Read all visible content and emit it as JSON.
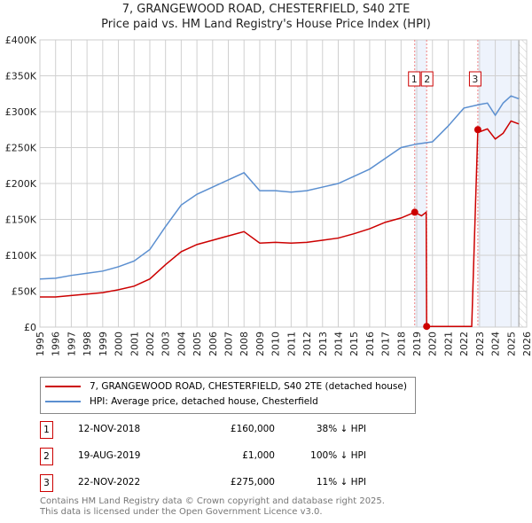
{
  "chart_data": {
    "type": "line",
    "title": "7, GRANGEWOOD ROAD, CHESTERFIELD, S40 2TE",
    "subtitle": "Price paid vs. HM Land Registry's House Price Index (HPI)",
    "xlim": [
      1995,
      2026
    ],
    "ylim": [
      0,
      400000
    ],
    "xticks": [
      "1995",
      "1996",
      "1997",
      "1998",
      "1999",
      "2000",
      "2001",
      "2002",
      "2003",
      "2004",
      "2005",
      "2006",
      "2007",
      "2008",
      "2009",
      "2010",
      "2011",
      "2012",
      "2013",
      "2014",
      "2015",
      "2016",
      "2017",
      "2018",
      "2019",
      "2020",
      "2021",
      "2022",
      "2023",
      "2024",
      "2025",
      "2026"
    ],
    "yticks": [
      {
        "v": 0,
        "l": "£0"
      },
      {
        "v": 50000,
        "l": "£50K"
      },
      {
        "v": 100000,
        "l": "£100K"
      },
      {
        "v": 150000,
        "l": "£150K"
      },
      {
        "v": 200000,
        "l": "£200K"
      },
      {
        "v": 250000,
        "l": "£250K"
      },
      {
        "v": 300000,
        "l": "£300K"
      },
      {
        "v": 350000,
        "l": "£350K"
      },
      {
        "v": 400000,
        "l": "£400K"
      }
    ],
    "grid": true,
    "series": [
      {
        "name": "7, GRANGEWOOD ROAD, CHESTERFIELD, S40 2TE (detached house)",
        "color": "#cc0000",
        "x": [
          1995,
          1996,
          1997,
          1998,
          1999,
          2000,
          2001,
          2002,
          2003,
          2004,
          2005,
          2006,
          2007,
          2008,
          2009,
          2010,
          2011,
          2012,
          2013,
          2014,
          2015,
          2016,
          2017,
          2018,
          2018.87,
          2019.3,
          2019.6,
          2019.63,
          2022.5,
          2022.89,
          2023,
          2023.5,
          2024,
          2024.5,
          2025,
          2025.5
        ],
        "y": [
          42000,
          42000,
          44000,
          46000,
          48000,
          52000,
          57000,
          67000,
          87000,
          105000,
          115000,
          121000,
          127000,
          133000,
          117000,
          118000,
          117000,
          118000,
          121000,
          124000,
          130000,
          137000,
          146000,
          152000,
          160000,
          155000,
          160000,
          1000,
          1000,
          275000,
          272000,
          276000,
          262000,
          270000,
          287000,
          283000
        ]
      },
      {
        "name": "HPI: Average price, detached house, Chesterfield",
        "color": "#5b8fd0",
        "x": [
          1995,
          1996,
          1997,
          1998,
          1999,
          2000,
          2001,
          2002,
          2003,
          2004,
          2005,
          2006,
          2007,
          2008,
          2009,
          2010,
          2011,
          2012,
          2013,
          2014,
          2015,
          2016,
          2017,
          2018,
          2019,
          2020,
          2021,
          2022,
          2023,
          2023.5,
          2024,
          2024.5,
          2025,
          2025.5
        ],
        "y": [
          67000,
          68000,
          72000,
          75000,
          78000,
          84000,
          92000,
          108000,
          140000,
          170000,
          185000,
          195000,
          205000,
          215000,
          190000,
          190000,
          188000,
          190000,
          195000,
          200000,
          210000,
          220000,
          235000,
          250000,
          255000,
          258000,
          280000,
          305000,
          310000,
          312000,
          295000,
          312000,
          322000,
          318000
        ]
      }
    ],
    "sales": [
      {
        "id": "1",
        "x": 2018.87,
        "y": 160000,
        "date": "12-NOV-2018",
        "price": "£160,000",
        "hpi": "38% ↓ HPI"
      },
      {
        "id": "2",
        "x": 2019.63,
        "y": 1000,
        "date": "19-AUG-2019",
        "price": "£1,000",
        "hpi": "100% ↓ HPI"
      },
      {
        "id": "3",
        "x": 2022.89,
        "y": 275000,
        "date": "22-NOV-2022",
        "price": "£275,000",
        "hpi": "11% ↓ HPI"
      }
    ],
    "shaded": [
      [
        2018.87,
        2019.63
      ],
      [
        2022.89,
        2025.5
      ]
    ],
    "forecast_from": 2025.5
  },
  "footer": [
    "Contains HM Land Registry data © Crown copyright and database right 2025.",
    "This data is licensed under the Open Government Licence v3.0."
  ]
}
